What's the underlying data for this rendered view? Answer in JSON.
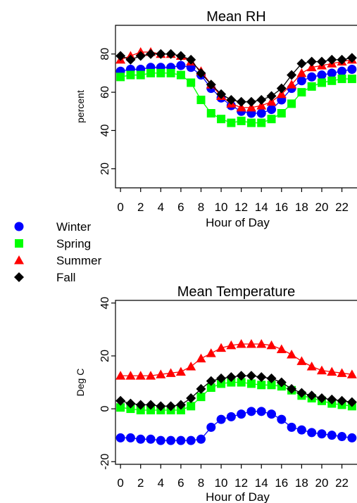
{
  "legend": [
    {
      "label": "Winter",
      "color": "#0000ff",
      "marker": "circle"
    },
    {
      "label": "Spring",
      "color": "#00ff00",
      "marker": "square"
    },
    {
      "label": "Summer",
      "color": "#ff0000",
      "marker": "triangle"
    },
    {
      "label": "Fall",
      "color": "#000000",
      "marker": "diamond"
    }
  ],
  "chart_data": [
    {
      "type": "line",
      "title": "Mean RH",
      "xlabel": "Hour of Day",
      "ylabel": "percent",
      "xlim": [
        -0.5,
        23.5
      ],
      "ylim": [
        10,
        95
      ],
      "x_ticks": [
        0,
        2,
        4,
        6,
        8,
        10,
        12,
        14,
        16,
        18,
        20,
        22
      ],
      "y_ticks": [
        20,
        40,
        60,
        80
      ],
      "x": [
        0,
        1,
        2,
        3,
        4,
        5,
        6,
        7,
        8,
        9,
        10,
        11,
        12,
        13,
        14,
        15,
        16,
        17,
        18,
        19,
        20,
        21,
        22,
        23
      ],
      "series": [
        {
          "name": "Winter",
          "color": "#0000ff",
          "marker": "circle",
          "values": [
            71,
            72,
            72,
            73,
            73,
            73,
            74,
            73,
            69,
            62,
            57,
            53,
            50,
            49,
            49,
            51,
            56,
            62,
            66,
            68,
            69,
            70,
            71,
            72
          ]
        },
        {
          "name": "Spring",
          "color": "#00ff00",
          "marker": "square",
          "values": [
            68,
            69,
            69,
            70,
            70,
            70,
            69,
            65,
            56,
            49,
            46,
            44,
            45,
            44,
            44,
            46,
            49,
            54,
            60,
            63,
            65,
            66,
            67,
            67
          ]
        },
        {
          "name": "Summer",
          "color": "#ff0000",
          "marker": "triangle",
          "values": [
            77,
            79,
            81,
            81,
            80,
            80,
            79,
            76,
            71,
            64,
            58,
            54,
            52,
            52,
            53,
            55,
            59,
            64,
            70,
            73,
            74,
            75,
            76,
            77
          ]
        },
        {
          "name": "Fall",
          "color": "#000000",
          "marker": "diamond",
          "values": [
            79,
            77,
            79,
            80,
            80,
            80,
            79,
            77,
            70,
            64,
            59,
            56,
            55,
            55,
            56,
            58,
            62,
            69,
            75,
            76,
            76,
            77,
            77,
            78
          ]
        }
      ]
    },
    {
      "type": "line",
      "title": "Mean Temperature",
      "xlabel": "Hour of Day",
      "ylabel": "Deg C",
      "xlim": [
        -0.5,
        23.5
      ],
      "ylim": [
        -21,
        41
      ],
      "x_ticks": [
        0,
        2,
        4,
        6,
        8,
        10,
        12,
        14,
        16,
        18,
        20,
        22
      ],
      "y_ticks": [
        -20,
        0,
        20,
        40
      ],
      "x": [
        0,
        1,
        2,
        3,
        4,
        5,
        6,
        7,
        8,
        9,
        10,
        11,
        12,
        13,
        14,
        15,
        16,
        17,
        18,
        19,
        20,
        21,
        22,
        23
      ],
      "series": [
        {
          "name": "Winter",
          "color": "#0000ff",
          "marker": "circle",
          "values": [
            -11,
            -11,
            -11.5,
            -11.5,
            -12,
            -12,
            -12,
            -12,
            -11.5,
            -7,
            -4,
            -3,
            -2,
            -1,
            -1,
            -2,
            -4,
            -7,
            -8,
            -9,
            -9.5,
            -10,
            -10.5,
            -11
          ]
        },
        {
          "name": "Spring",
          "color": "#00ff00",
          "marker": "square",
          "values": [
            0.5,
            0,
            -0.5,
            -0.5,
            -0.5,
            -0.5,
            -0.5,
            1,
            4.5,
            8,
            9.5,
            10,
            10,
            9.5,
            9,
            9,
            8.5,
            7,
            5,
            4,
            3,
            2,
            1.5,
            1
          ]
        },
        {
          "name": "Summer",
          "color": "#ff0000",
          "marker": "triangle",
          "values": [
            12.5,
            12.5,
            12.5,
            12.5,
            13,
            13.5,
            14,
            16,
            19,
            21,
            23,
            24,
            24.5,
            24.5,
            24.5,
            24,
            22.5,
            20.5,
            18,
            16,
            14.5,
            14,
            13.5,
            13
          ]
        },
        {
          "name": "Fall",
          "color": "#000000",
          "marker": "diamond",
          "values": [
            3,
            2,
            1.5,
            1.5,
            1,
            1,
            1.5,
            4,
            7.5,
            10.5,
            11.5,
            12,
            12.5,
            12.5,
            12,
            11.5,
            10,
            7.5,
            6,
            5,
            4,
            3.5,
            3,
            2.5
          ]
        }
      ]
    }
  ]
}
